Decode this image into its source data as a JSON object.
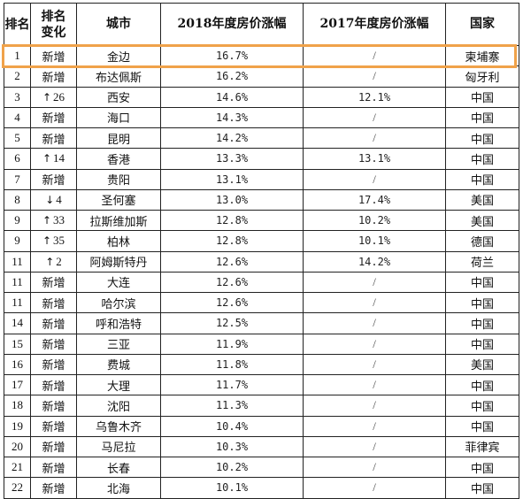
{
  "header": {
    "rank": "排名",
    "change": "排名变化",
    "city": "城市",
    "growth_2018": "2018年度房价涨幅",
    "growth_2017": "2017年度房价涨幅",
    "country": "国家"
  },
  "highlight_color": "#f0a24a",
  "rows": [
    {
      "rank": "1",
      "change": "新增",
      "city": "金边",
      "g2018": "16.7%",
      "g2017": "/",
      "country": "柬埔寨"
    },
    {
      "rank": "2",
      "change": "新增",
      "city": "布达佩斯",
      "g2018": "16.2%",
      "g2017": "/",
      "country": "匈牙利"
    },
    {
      "rank": "3",
      "change": "↑26",
      "city": "西安",
      "g2018": "14.6%",
      "g2017": "12.1%",
      "country": "中国"
    },
    {
      "rank": "4",
      "change": "新增",
      "city": "海口",
      "g2018": "14.3%",
      "g2017": "/",
      "country": "中国"
    },
    {
      "rank": "5",
      "change": "新增",
      "city": "昆明",
      "g2018": "14.2%",
      "g2017": "/",
      "country": "中国"
    },
    {
      "rank": "6",
      "change": "↑14",
      "city": "香港",
      "g2018": "13.3%",
      "g2017": "13.1%",
      "country": "中国"
    },
    {
      "rank": "7",
      "change": "新增",
      "city": "贵阳",
      "g2018": "13.1%",
      "g2017": "/",
      "country": "中国"
    },
    {
      "rank": "8",
      "change": "↓4",
      "city": "圣何塞",
      "g2018": "13.0%",
      "g2017": "17.4%",
      "country": "美国"
    },
    {
      "rank": "9",
      "change": "↑33",
      "city": "拉斯维加斯",
      "g2018": "12.8%",
      "g2017": "10.2%",
      "country": "美国"
    },
    {
      "rank": "9",
      "change": "↑35",
      "city": "柏林",
      "g2018": "12.8%",
      "g2017": "10.1%",
      "country": "德国"
    },
    {
      "rank": "11",
      "change": "↑2",
      "city": "阿姆斯特丹",
      "g2018": "12.6%",
      "g2017": "14.2%",
      "country": "荷兰"
    },
    {
      "rank": "11",
      "change": "新增",
      "city": "大连",
      "g2018": "12.6%",
      "g2017": "/",
      "country": "中国"
    },
    {
      "rank": "11",
      "change": "新增",
      "city": "哈尔滨",
      "g2018": "12.6%",
      "g2017": "/",
      "country": "中国"
    },
    {
      "rank": "14",
      "change": "新增",
      "city": "呼和浩特",
      "g2018": "12.5%",
      "g2017": "/",
      "country": "中国"
    },
    {
      "rank": "15",
      "change": "新增",
      "city": "三亚",
      "g2018": "11.9%",
      "g2017": "/",
      "country": "中国"
    },
    {
      "rank": "16",
      "change": "新增",
      "city": "费城",
      "g2018": "11.8%",
      "g2017": "/",
      "country": "美国"
    },
    {
      "rank": "17",
      "change": "新增",
      "city": "大理",
      "g2018": "11.7%",
      "g2017": "/",
      "country": "中国"
    },
    {
      "rank": "18",
      "change": "新增",
      "city": "沈阳",
      "g2018": "11.3%",
      "g2017": "/",
      "country": "中国"
    },
    {
      "rank": "19",
      "change": "新增",
      "city": "乌鲁木齐",
      "g2018": "10.4%",
      "g2017": "/",
      "country": "中国"
    },
    {
      "rank": "20",
      "change": "新增",
      "city": "马尼拉",
      "g2018": "10.3%",
      "g2017": "/",
      "country": "菲律宾"
    },
    {
      "rank": "21",
      "change": "新增",
      "city": "长春",
      "g2018": "10.2%",
      "g2017": "/",
      "country": "中国"
    },
    {
      "rank": "22",
      "change": "新增",
      "city": "北海",
      "g2018": "10.1%",
      "g2017": "/",
      "country": "中国"
    }
  ]
}
